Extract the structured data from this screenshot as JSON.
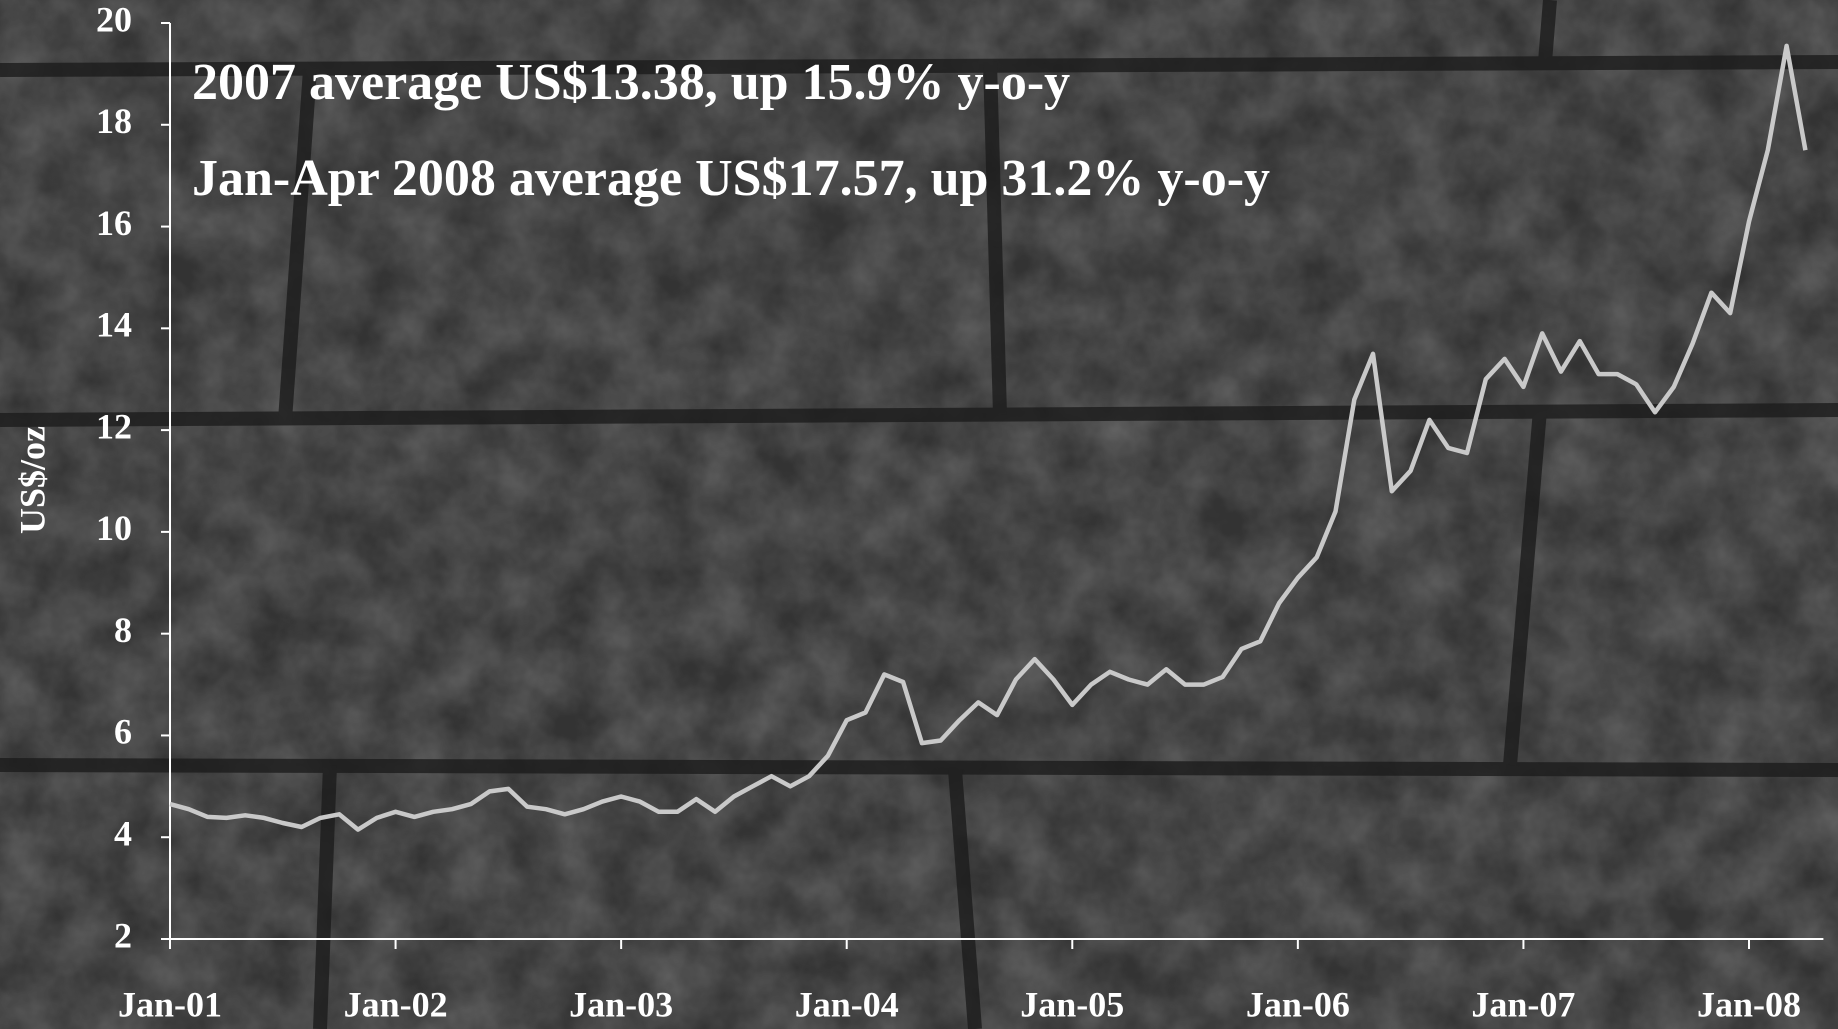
{
  "chart_data": {
    "type": "line",
    "annotations": [
      "2007 average US$13.38, up 15.9% y-o-y",
      "Jan-Apr 2008 average US$17.57, up 31.2% y-o-y"
    ],
    "y_label": "US$/oz",
    "categories": [
      "Jan-01",
      null,
      null,
      null,
      null,
      null,
      null,
      null,
      null,
      null,
      null,
      null,
      "Jan-02",
      null,
      null,
      null,
      null,
      null,
      null,
      null,
      null,
      null,
      null,
      null,
      "Jan-03",
      null,
      null,
      null,
      null,
      null,
      null,
      null,
      null,
      null,
      null,
      null,
      "Jan-04",
      null,
      null,
      null,
      null,
      null,
      null,
      null,
      null,
      null,
      null,
      null,
      "Jan-05",
      null,
      null,
      null,
      null,
      null,
      null,
      null,
      null,
      null,
      null,
      null,
      "Jan-06",
      null,
      null,
      null,
      null,
      null,
      null,
      null,
      null,
      null,
      null,
      null,
      "Jan-07",
      null,
      null,
      null,
      null,
      null,
      null,
      null,
      null,
      null,
      null,
      null,
      "Jan-08",
      null,
      null,
      null
    ],
    "values": [
      4.65,
      4.55,
      4.4,
      4.38,
      4.43,
      4.38,
      4.28,
      4.2,
      4.38,
      4.45,
      4.15,
      4.38,
      4.5,
      4.4,
      4.5,
      4.55,
      4.65,
      4.9,
      4.95,
      4.6,
      4.55,
      4.45,
      4.55,
      4.7,
      4.8,
      4.7,
      4.5,
      4.5,
      4.75,
      4.5,
      4.8,
      5.0,
      5.2,
      5.0,
      5.2,
      5.6,
      6.3,
      6.45,
      7.2,
      7.05,
      5.85,
      5.9,
      6.3,
      6.65,
      6.4,
      7.1,
      7.5,
      7.1,
      6.6,
      7.0,
      7.25,
      7.1,
      7.0,
      7.3,
      7.0,
      7.0,
      7.15,
      7.7,
      7.85,
      8.6,
      9.1,
      9.5,
      10.4,
      12.6,
      13.5,
      10.8,
      11.2,
      12.2,
      11.65,
      11.55,
      13.0,
      13.4,
      12.85,
      13.9,
      13.15,
      13.75,
      13.1,
      13.1,
      12.9,
      12.35,
      12.85,
      13.7,
      14.7,
      14.3,
      16.1,
      17.5,
      19.55,
      17.5
    ],
    "color": "#c9c9c9",
    "ylim": [
      2,
      20
    ],
    "yticks": [
      2,
      4,
      6,
      8,
      10,
      12,
      14,
      16,
      18,
      20
    ]
  }
}
